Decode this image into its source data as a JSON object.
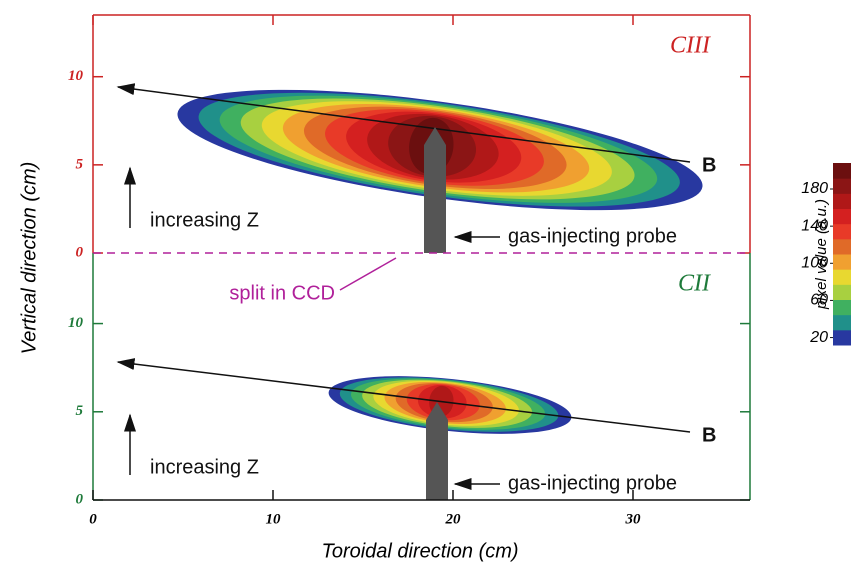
{
  "chart_data": {
    "type": "contour",
    "xlabel": "Toroidal direction (cm)",
    "ylabel": "Vertical direction (cm)",
    "xlim": [
      0,
      36.5
    ],
    "xticks": [
      0,
      10,
      20,
      30
    ],
    "panels": [
      {
        "name": "CIII",
        "color": "#cc2222",
        "ylim": [
          0,
          13.5
        ],
        "yticks": [
          0,
          5,
          10
        ],
        "b_label": "B",
        "z_label": "increasing Z",
        "probe_label": "gas-injecting probe"
      },
      {
        "name": "CII",
        "color": "#1e7a3a",
        "ylim": [
          0,
          14
        ],
        "yticks": [
          0,
          5,
          10
        ],
        "b_label": "B",
        "z_label": "increasing Z",
        "probe_label": "gas-injecting probe"
      }
    ],
    "split_label": "split in CCD",
    "colorbar": {
      "label": "pixel value (a.u.)",
      "lim": [
        12,
        208
      ],
      "ticks": [
        20,
        60,
        100,
        140,
        180
      ],
      "colors": [
        "#2838a0",
        "#20908a",
        "#40b060",
        "#a8d040",
        "#e8d830",
        "#f0a030",
        "#e06a28",
        "#e83a28",
        "#d42020",
        "#b01818",
        "#8b1515",
        "#6b0f0f"
      ]
    }
  }
}
